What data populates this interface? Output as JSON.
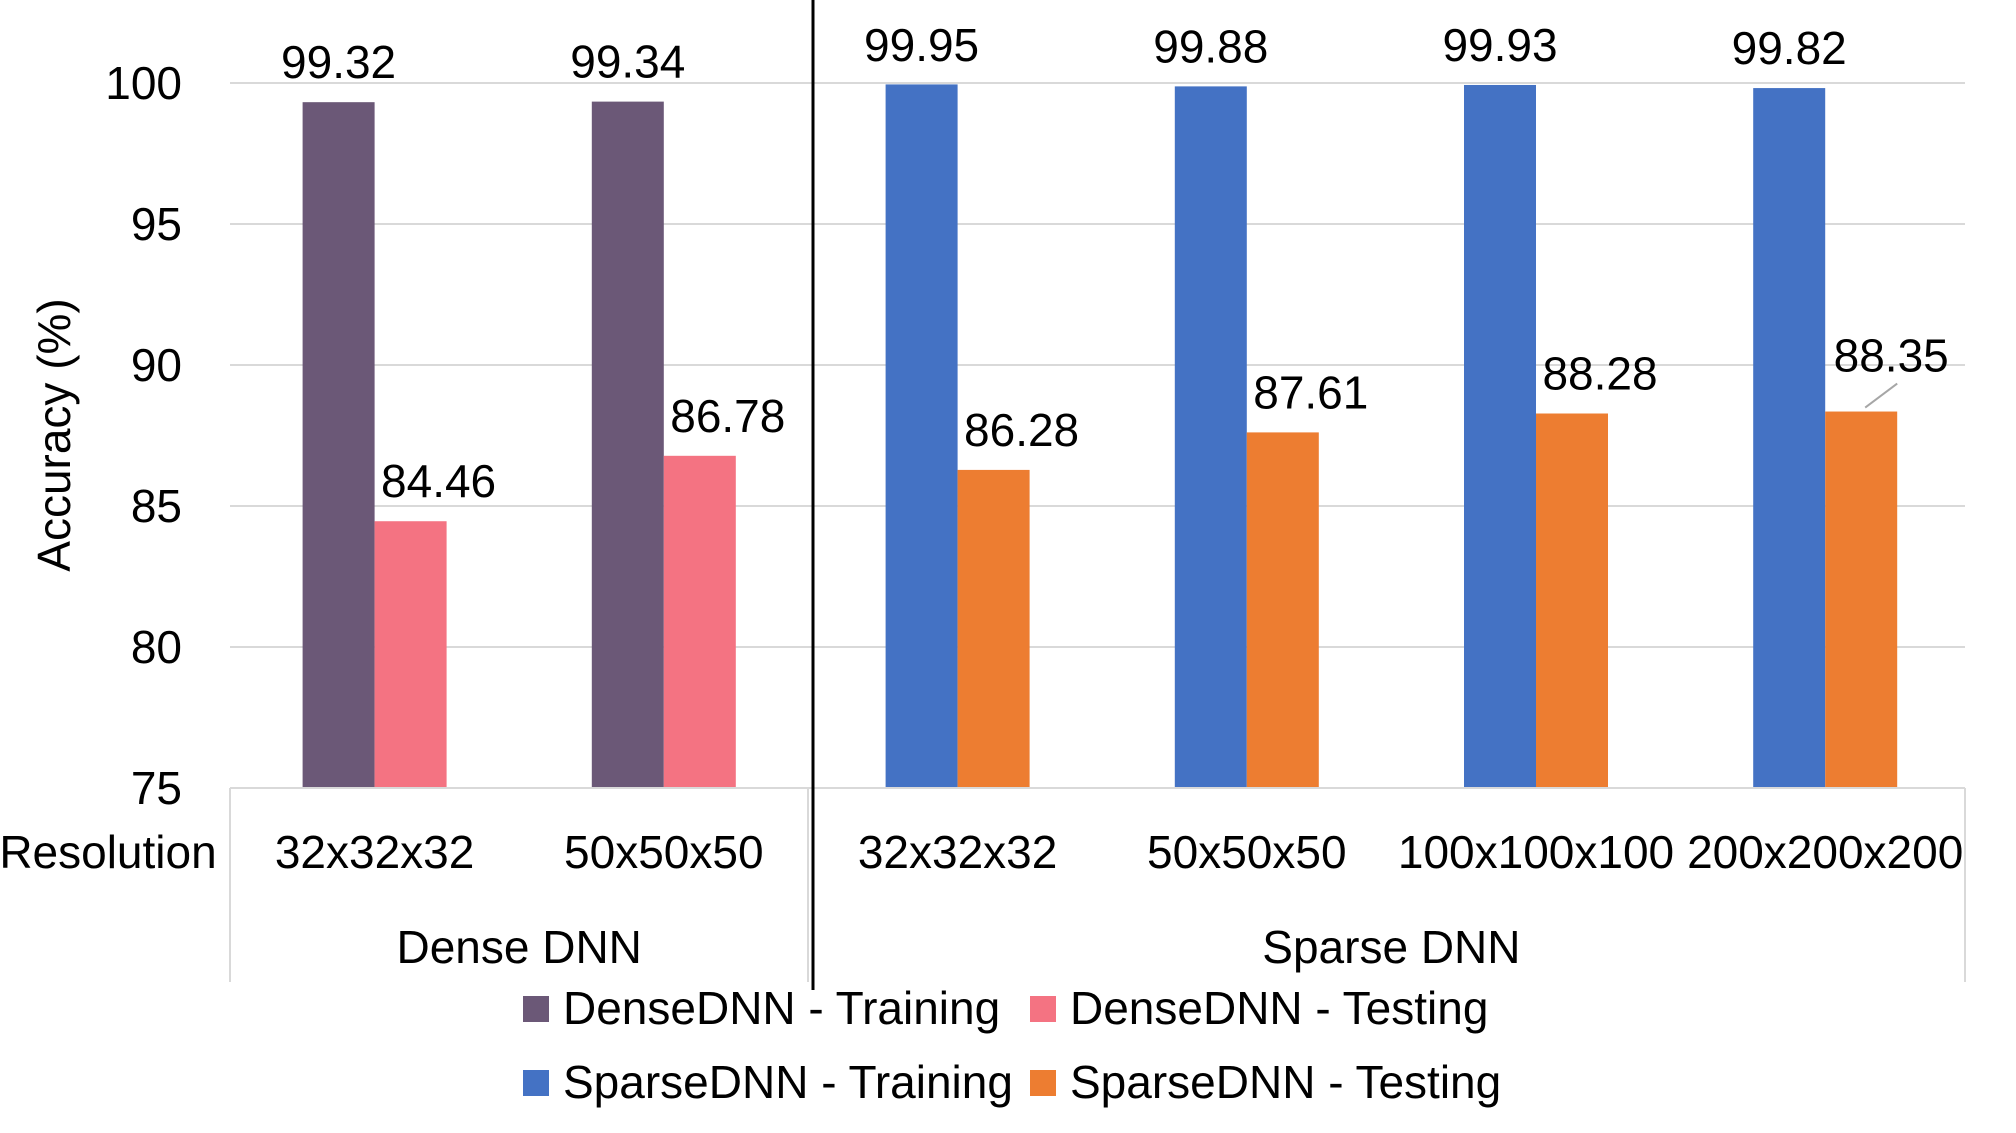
{
  "chart_data": {
    "type": "bar",
    "ylabel": "Accuracy (%)",
    "ylim": [
      75,
      100
    ],
    "yticks": [
      75,
      80,
      85,
      90,
      95,
      100
    ],
    "grid": true,
    "category_axis_label": "Resolution",
    "groups": [
      {
        "name": "Dense DNN",
        "categories": [
          "32x32x32",
          "50x50x50"
        ]
      },
      {
        "name": "Sparse DNN",
        "categories": [
          "32x32x32",
          "50x50x50",
          "100x100x100",
          "200x200x200"
        ]
      }
    ],
    "series": [
      {
        "name": "DenseDNN - Training",
        "color": "#6b5877",
        "group": "Dense DNN",
        "values": [
          99.32,
          99.34
        ],
        "labels": [
          "99.32",
          "99.34"
        ]
      },
      {
        "name": "DenseDNN - Testing",
        "color": "#f47382",
        "group": "Dense DNN",
        "values": [
          84.46,
          86.78
        ],
        "labels": [
          "84.46",
          "86.78"
        ]
      },
      {
        "name": "SparseDNN - Training",
        "color": "#4472c4",
        "group": "Sparse DNN",
        "values": [
          99.95,
          99.88,
          99.93,
          99.82
        ],
        "labels": [
          "99.95",
          "99.88",
          "99.93",
          "99.82"
        ]
      },
      {
        "name": "SparseDNN - Testing",
        "color": "#ed7d31",
        "group": "Sparse DNN",
        "values": [
          86.28,
          87.61,
          88.28,
          88.35
        ],
        "labels": [
          "86.28",
          "87.61",
          "88.28",
          "88.35"
        ]
      }
    ],
    "legend": "bottom"
  }
}
